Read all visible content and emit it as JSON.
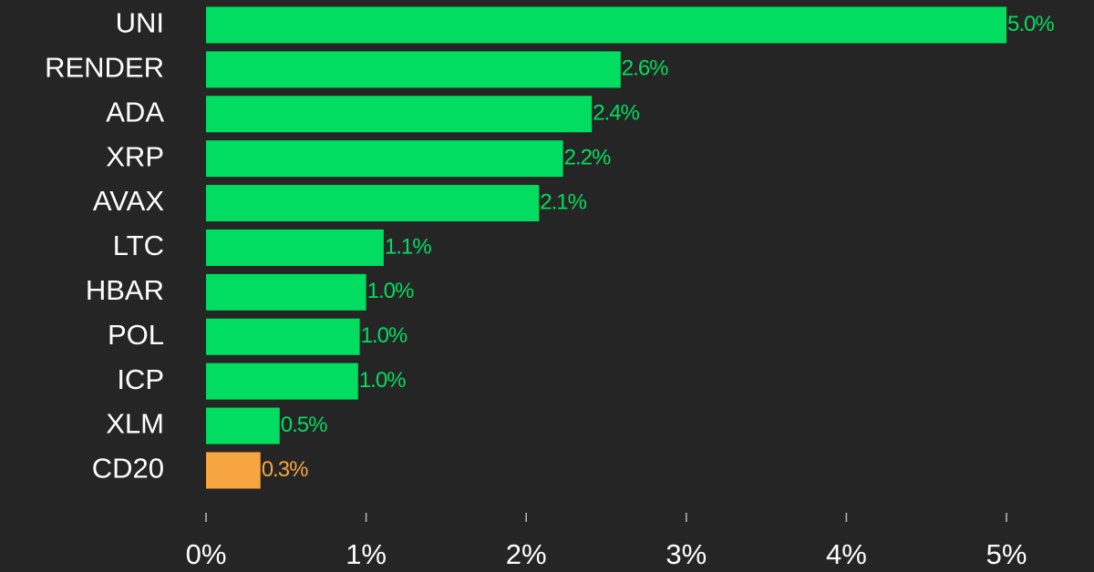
{
  "chart_data": {
    "type": "bar",
    "orientation": "horizontal",
    "categories": [
      "UNI",
      "RENDER",
      "ADA",
      "XRP",
      "AVAX",
      "LTC",
      "HBAR",
      "POL",
      "ICP",
      "XLM",
      "CD20"
    ],
    "values": [
      5.0,
      2.59,
      2.41,
      2.23,
      2.08,
      1.11,
      1.0,
      0.96,
      0.95,
      0.46,
      0.34
    ],
    "value_labels": [
      "5.0%",
      "2.6%",
      "2.4%",
      "2.2%",
      "2.1%",
      "1.1%",
      "1.0%",
      "1.0%",
      "1.0%",
      "0.5%",
      "0.3%"
    ],
    "colors": [
      "#00dd60",
      "#00dd60",
      "#00dd60",
      "#00dd60",
      "#00dd60",
      "#00dd60",
      "#00dd60",
      "#00dd60",
      "#00dd60",
      "#00dd60",
      "#f7a541"
    ],
    "xlim": [
      0,
      5
    ],
    "xticks": [
      {
        "value": 0,
        "label": "0%"
      },
      {
        "value": 1,
        "label": "1%"
      },
      {
        "value": 2,
        "label": "2%"
      },
      {
        "value": 3,
        "label": "3%"
      },
      {
        "value": 4,
        "label": "4%"
      },
      {
        "value": 5,
        "label": "5%"
      }
    ],
    "grid": false
  }
}
